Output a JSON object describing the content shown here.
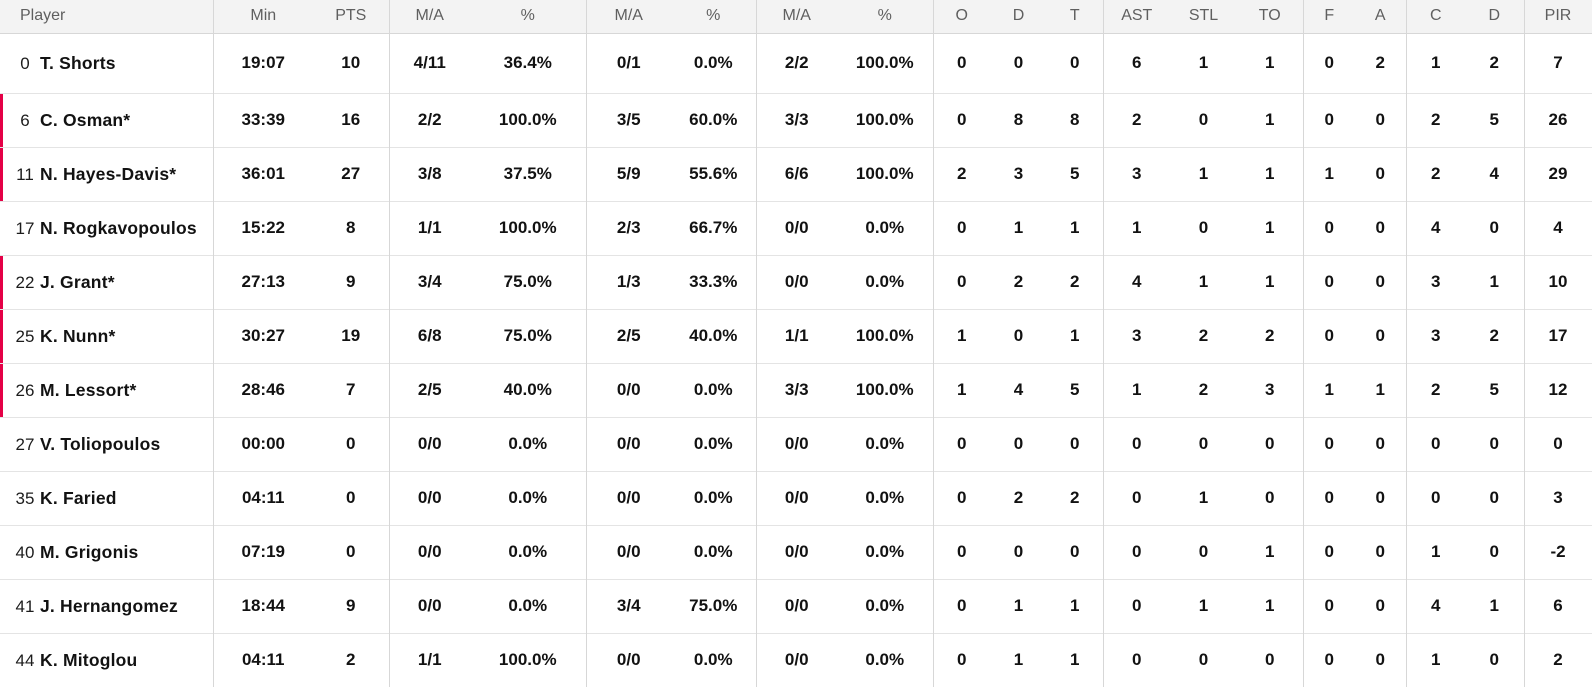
{
  "colors": {
    "starter_accent": "#e40046",
    "header_bg": "#f3f3f3",
    "header_text": "#5f5f5f",
    "body_text": "#121212",
    "grid_line": "#d7d7d7",
    "row_line": "#e4e4e4"
  },
  "box_score": {
    "header_labels": [
      "Player",
      "Min",
      "PTS",
      "M/A",
      "%",
      "M/A",
      "%",
      "M/A",
      "%",
      "O",
      "D",
      "T",
      "AST",
      "STL",
      "TO",
      "F",
      "A",
      "C",
      "D",
      "PIR"
    ],
    "rows": [
      {
        "number": "0",
        "name": "T. Shorts",
        "starter": false,
        "stats": [
          "19:07",
          "10",
          "4/11",
          "36.4%",
          "0/1",
          "0.0%",
          "2/2",
          "100.0%",
          "0",
          "0",
          "0",
          "6",
          "1",
          "1",
          "0",
          "2",
          "1",
          "2",
          "7"
        ]
      },
      {
        "number": "6",
        "name": "C. Osman*",
        "starter": true,
        "stats": [
          "33:39",
          "16",
          "2/2",
          "100.0%",
          "3/5",
          "60.0%",
          "3/3",
          "100.0%",
          "0",
          "8",
          "8",
          "2",
          "0",
          "1",
          "0",
          "0",
          "2",
          "5",
          "26"
        ]
      },
      {
        "number": "11",
        "name": "N. Hayes-Davis*",
        "starter": true,
        "stats": [
          "36:01",
          "27",
          "3/8",
          "37.5%",
          "5/9",
          "55.6%",
          "6/6",
          "100.0%",
          "2",
          "3",
          "5",
          "3",
          "1",
          "1",
          "1",
          "0",
          "2",
          "4",
          "29"
        ]
      },
      {
        "number": "17",
        "name": "N. Rogkavopoulos",
        "starter": false,
        "stats": [
          "15:22",
          "8",
          "1/1",
          "100.0%",
          "2/3",
          "66.7%",
          "0/0",
          "0.0%",
          "0",
          "1",
          "1",
          "1",
          "0",
          "1",
          "0",
          "0",
          "4",
          "0",
          "4"
        ]
      },
      {
        "number": "22",
        "name": "J. Grant*",
        "starter": true,
        "stats": [
          "27:13",
          "9",
          "3/4",
          "75.0%",
          "1/3",
          "33.3%",
          "0/0",
          "0.0%",
          "0",
          "2",
          "2",
          "4",
          "1",
          "1",
          "0",
          "0",
          "3",
          "1",
          "10"
        ]
      },
      {
        "number": "25",
        "name": "K. Nunn*",
        "starter": true,
        "stats": [
          "30:27",
          "19",
          "6/8",
          "75.0%",
          "2/5",
          "40.0%",
          "1/1",
          "100.0%",
          "1",
          "0",
          "1",
          "3",
          "2",
          "2",
          "0",
          "0",
          "3",
          "2",
          "17"
        ]
      },
      {
        "number": "26",
        "name": "M. Lessort*",
        "starter": true,
        "stats": [
          "28:46",
          "7",
          "2/5",
          "40.0%",
          "0/0",
          "0.0%",
          "3/3",
          "100.0%",
          "1",
          "4",
          "5",
          "1",
          "2",
          "3",
          "1",
          "1",
          "2",
          "5",
          "12"
        ]
      },
      {
        "number": "27",
        "name": "V. Toliopoulos",
        "starter": false,
        "stats": [
          "00:00",
          "0",
          "0/0",
          "0.0%",
          "0/0",
          "0.0%",
          "0/0",
          "0.0%",
          "0",
          "0",
          "0",
          "0",
          "0",
          "0",
          "0",
          "0",
          "0",
          "0",
          "0"
        ]
      },
      {
        "number": "35",
        "name": "K. Faried",
        "starter": false,
        "stats": [
          "04:11",
          "0",
          "0/0",
          "0.0%",
          "0/0",
          "0.0%",
          "0/0",
          "0.0%",
          "0",
          "2",
          "2",
          "0",
          "1",
          "0",
          "0",
          "0",
          "0",
          "0",
          "3"
        ]
      },
      {
        "number": "40",
        "name": "M. Grigonis",
        "starter": false,
        "stats": [
          "07:19",
          "0",
          "0/0",
          "0.0%",
          "0/0",
          "0.0%",
          "0/0",
          "0.0%",
          "0",
          "0",
          "0",
          "0",
          "0",
          "1",
          "0",
          "0",
          "1",
          "0",
          "-2"
        ]
      },
      {
        "number": "41",
        "name": "J. Hernangomez",
        "starter": false,
        "stats": [
          "18:44",
          "9",
          "0/0",
          "0.0%",
          "3/4",
          "75.0%",
          "0/0",
          "0.0%",
          "0",
          "1",
          "1",
          "0",
          "1",
          "1",
          "0",
          "0",
          "4",
          "1",
          "6"
        ]
      },
      {
        "number": "44",
        "name": "K. Mitoglou",
        "starter": false,
        "stats": [
          "04:11",
          "2",
          "1/1",
          "100.0%",
          "0/0",
          "0.0%",
          "0/0",
          "0.0%",
          "0",
          "1",
          "1",
          "0",
          "0",
          "0",
          "0",
          "0",
          "1",
          "0",
          "2"
        ]
      }
    ]
  }
}
